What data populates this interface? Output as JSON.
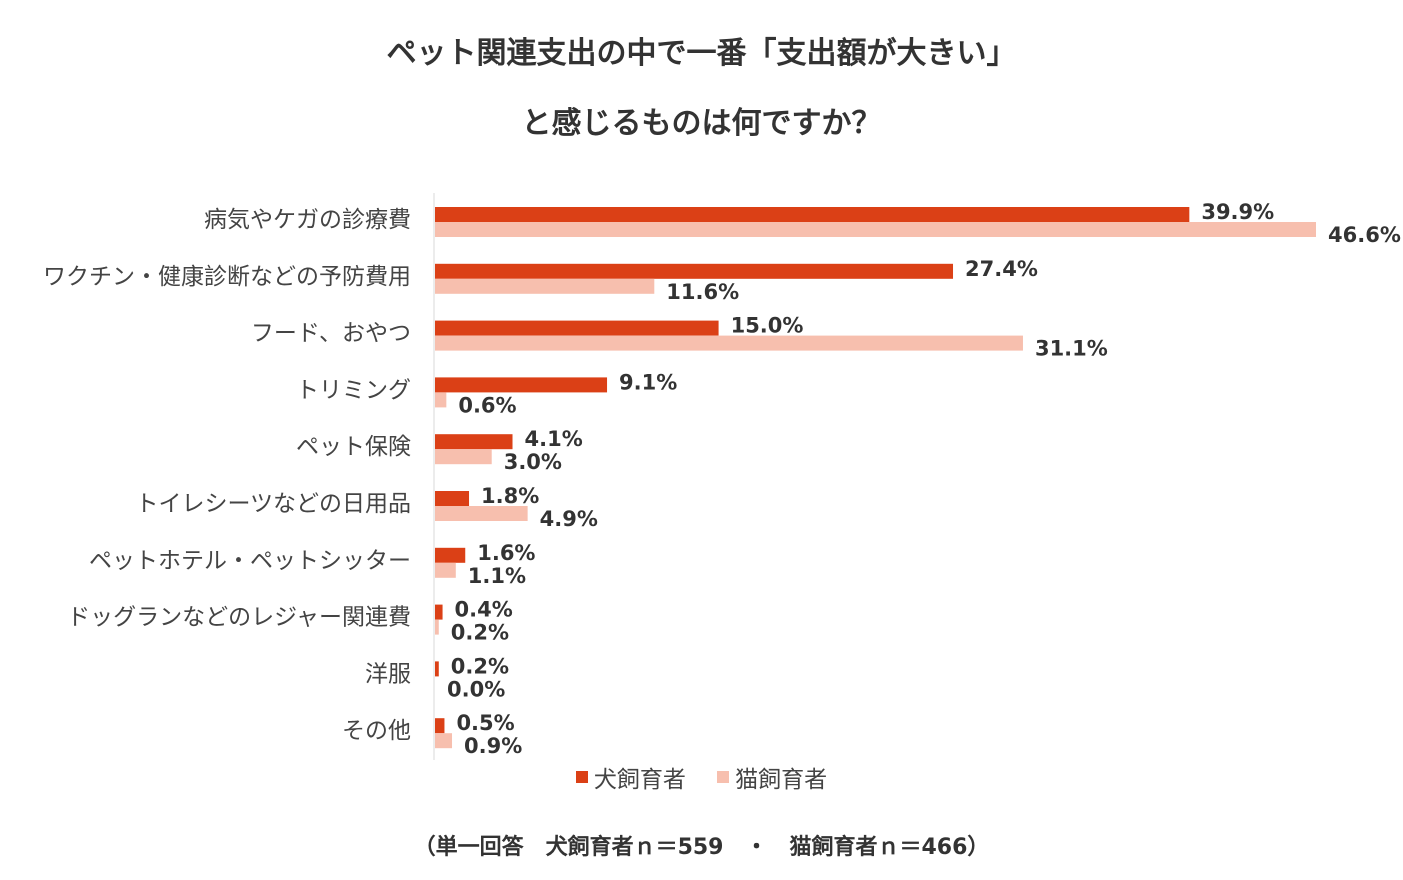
{
  "chart_data": {
    "type": "bar",
    "orientation": "horizontal",
    "title_line1": "ペット関連支出の中で一番「支出額が大きい」",
    "title_line2": "と感じるものは何ですか？",
    "categories": [
      "病気やケガの診療費",
      "ワクチン・健康診断などの予防費用",
      "フード、おやつ",
      "トリミング",
      "ペット保険",
      "トイレシーツなどの日用品",
      "ペットホテル・ペットシッター",
      "ドッグランなどのレジャー関連費",
      "洋服",
      "その他"
    ],
    "series": [
      {
        "name": "犬飼育者",
        "color": "#DB4016",
        "values": [
          39.9,
          27.4,
          15.0,
          9.1,
          4.1,
          1.8,
          1.6,
          0.4,
          0.2,
          0.5
        ],
        "labels": [
          "39.9%",
          "27.4%",
          "15.0%",
          "9.1%",
          "4.1%",
          "1.8%",
          "1.6%",
          "0.4%",
          "0.2%",
          "0.5%"
        ]
      },
      {
        "name": "猫飼育者",
        "color": "#F7BFAE",
        "values": [
          46.6,
          11.6,
          31.1,
          0.6,
          3.0,
          4.9,
          1.1,
          0.2,
          0.0,
          0.9
        ],
        "labels": [
          "46.6%",
          "11.6%",
          "31.1%",
          "0.6%",
          "3.0%",
          "4.9%",
          "1.1%",
          "0.2%",
          "0.0%",
          "0.9%"
        ]
      }
    ],
    "xlim": [
      0,
      50
    ],
    "unit": "%",
    "legend_position": "bottom",
    "grid": false
  },
  "footnote": "（単一回答　犬飼育者ｎ＝559　・　猫飼育者ｎ＝466）"
}
